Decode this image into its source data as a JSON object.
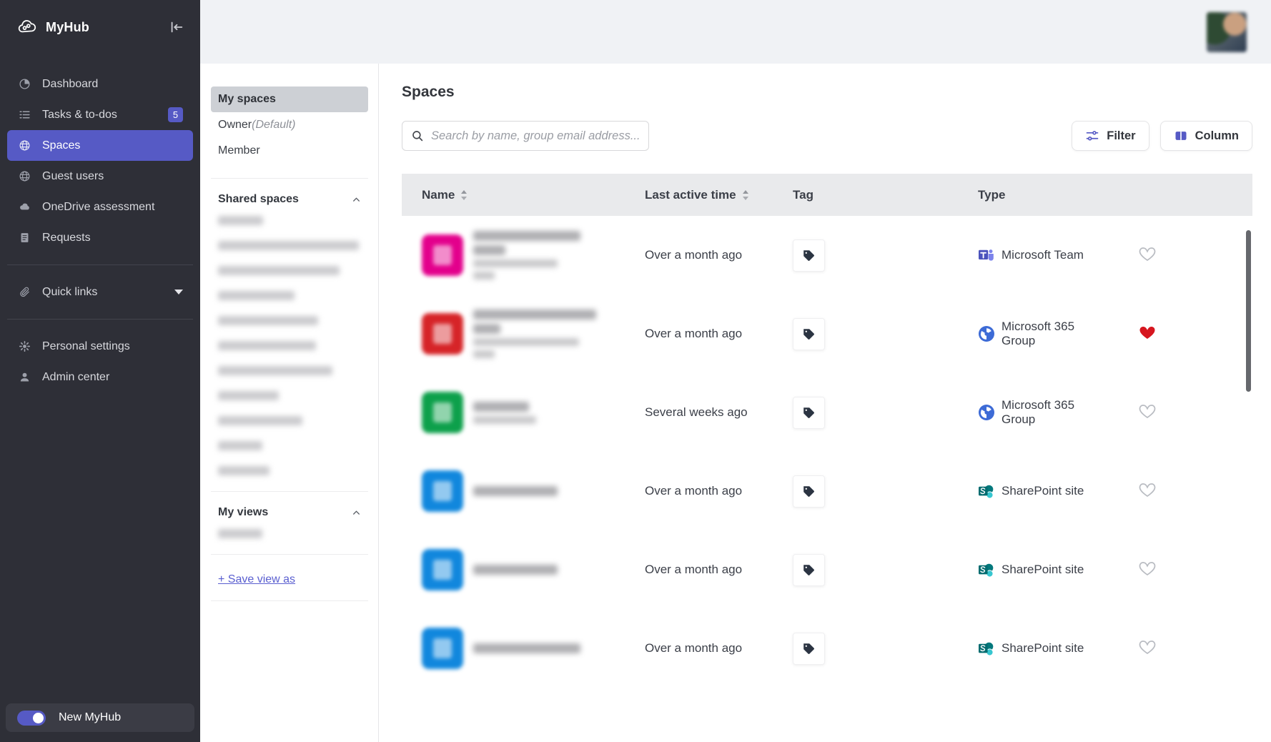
{
  "brand": {
    "name": "MyHub"
  },
  "sidebar": {
    "nav": [
      {
        "label": "Dashboard",
        "icon": "dashboard-icon",
        "active": false
      },
      {
        "label": "Tasks & to-dos",
        "icon": "tasks-icon",
        "active": false,
        "badge": "5"
      },
      {
        "label": "Spaces",
        "icon": "spaces-icon",
        "active": true
      },
      {
        "label": "Guest users",
        "icon": "guest-users-icon",
        "active": false
      },
      {
        "label": "OneDrive assessment",
        "icon": "onedrive-icon",
        "active": false
      },
      {
        "label": "Requests",
        "icon": "requests-icon",
        "active": false
      }
    ],
    "quick_links_label": "Quick links",
    "settings": [
      {
        "label": "Personal settings",
        "icon": "gear-icon"
      },
      {
        "label": "Admin center",
        "icon": "person-icon"
      }
    ],
    "new_myhub_toggle": {
      "label": "New MyHub",
      "state": "on"
    }
  },
  "space_filters": {
    "items": [
      {
        "label": "My spaces",
        "suffix": "",
        "selected": true
      },
      {
        "label": "Owner",
        "suffix": "(Default)",
        "selected": false
      },
      {
        "label": "Member",
        "suffix": "",
        "selected": false
      }
    ],
    "shared_spaces": {
      "title": "Shared spaces",
      "redacted_item_widths": [
        63,
        197,
        170,
        107,
        140,
        137,
        160,
        85,
        118,
        62,
        72
      ]
    },
    "my_views": {
      "title": "My views",
      "redacted_item_widths": [
        62
      ]
    },
    "save_view_label": "+ Save view as"
  },
  "main": {
    "title": "Spaces",
    "search": {
      "placeholder": "Search by name, group email address..."
    },
    "toolbar": {
      "filter_label": "Filter",
      "column_label": "Column"
    },
    "table": {
      "columns": [
        {
          "label": "Name",
          "sortable": true
        },
        {
          "label": "Last active time",
          "sortable": true
        },
        {
          "label": "Tag",
          "sortable": false
        },
        {
          "label": "Type",
          "sortable": false
        }
      ],
      "rows": [
        {
          "name_redacted": true,
          "avatar_color": "#e3008c",
          "name_lines": [
            [
              150,
              "lg"
            ],
            [
              45,
              "lg"
            ],
            [
              118,
              "sm"
            ],
            [
              30,
              "sm"
            ]
          ],
          "last_active": "Over a month ago",
          "type": "Microsoft Team",
          "type_icon": "teams-icon",
          "favorite": false
        },
        {
          "name_redacted": true,
          "avatar_color": "#d62428",
          "name_lines": [
            [
              172,
              "lg"
            ],
            [
              38,
              "lg"
            ],
            [
              148,
              "sm"
            ],
            [
              30,
              "sm"
            ]
          ],
          "last_active": "Over a month ago",
          "type": "Microsoft 365 Group",
          "type_icon": "m365-group-icon",
          "favorite": true
        },
        {
          "name_redacted": true,
          "avatar_color": "#0da04b",
          "name_lines": [
            [
              78,
              "lg"
            ],
            [
              88,
              "sm"
            ]
          ],
          "last_active": "Several weeks ago",
          "type": "Microsoft 365 Group",
          "type_icon": "m365-group-icon",
          "favorite": false
        },
        {
          "name_redacted": true,
          "avatar_color": "#1187dd",
          "name_lines": [
            [
              118,
              "lg"
            ]
          ],
          "last_active": "Over a month ago",
          "type": "SharePoint site",
          "type_icon": "sharepoint-icon",
          "favorite": false
        },
        {
          "name_redacted": true,
          "avatar_color": "#1187dd",
          "name_lines": [
            [
              118,
              "lg"
            ]
          ],
          "last_active": "Over a month ago",
          "type": "SharePoint site",
          "type_icon": "sharepoint-icon",
          "favorite": false
        },
        {
          "name_redacted": true,
          "avatar_color": "#1187dd",
          "name_lines": [
            [
              150,
              "lg"
            ]
          ],
          "last_active": "Over a month ago",
          "type": "SharePoint site",
          "type_icon": "sharepoint-icon",
          "favorite": false
        }
      ]
    }
  },
  "colors": {
    "accent": "#565ac5",
    "favorite_red": "#d6161f",
    "teams_purple": "#4b53bc",
    "m365_blue": "#3d6bd6",
    "sharepoint_teal": "#036c70",
    "sidebar_bg": "#2e2f37",
    "topbar_bg": "#f0f2f5",
    "table_header_bg": "#e9eaec"
  }
}
